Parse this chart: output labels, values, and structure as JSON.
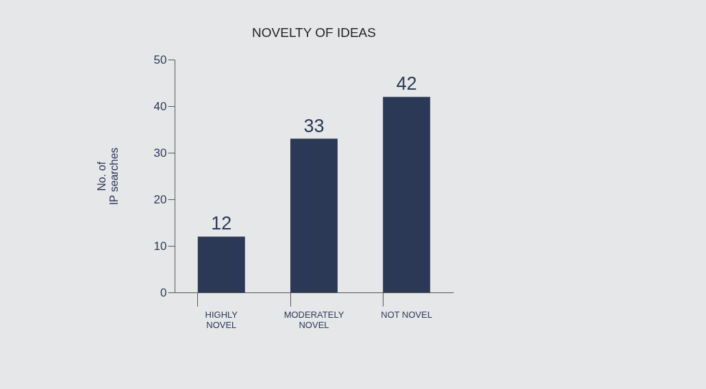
{
  "chart_data": {
    "type": "bar",
    "title": "NOVELTY OF IDEAS",
    "ylabel": "No. of\nIP searches",
    "categories": [
      "HIGHLY\nNOVEL",
      "MODERATELY\nNOVEL",
      "NOT NOVEL"
    ],
    "values": [
      12,
      33,
      42
    ],
    "color": "#2b3856",
    "ylim": [
      0,
      50
    ],
    "yticks": [
      0,
      10,
      20,
      30,
      40,
      50
    ],
    "grid": false,
    "data_labels": true
  }
}
